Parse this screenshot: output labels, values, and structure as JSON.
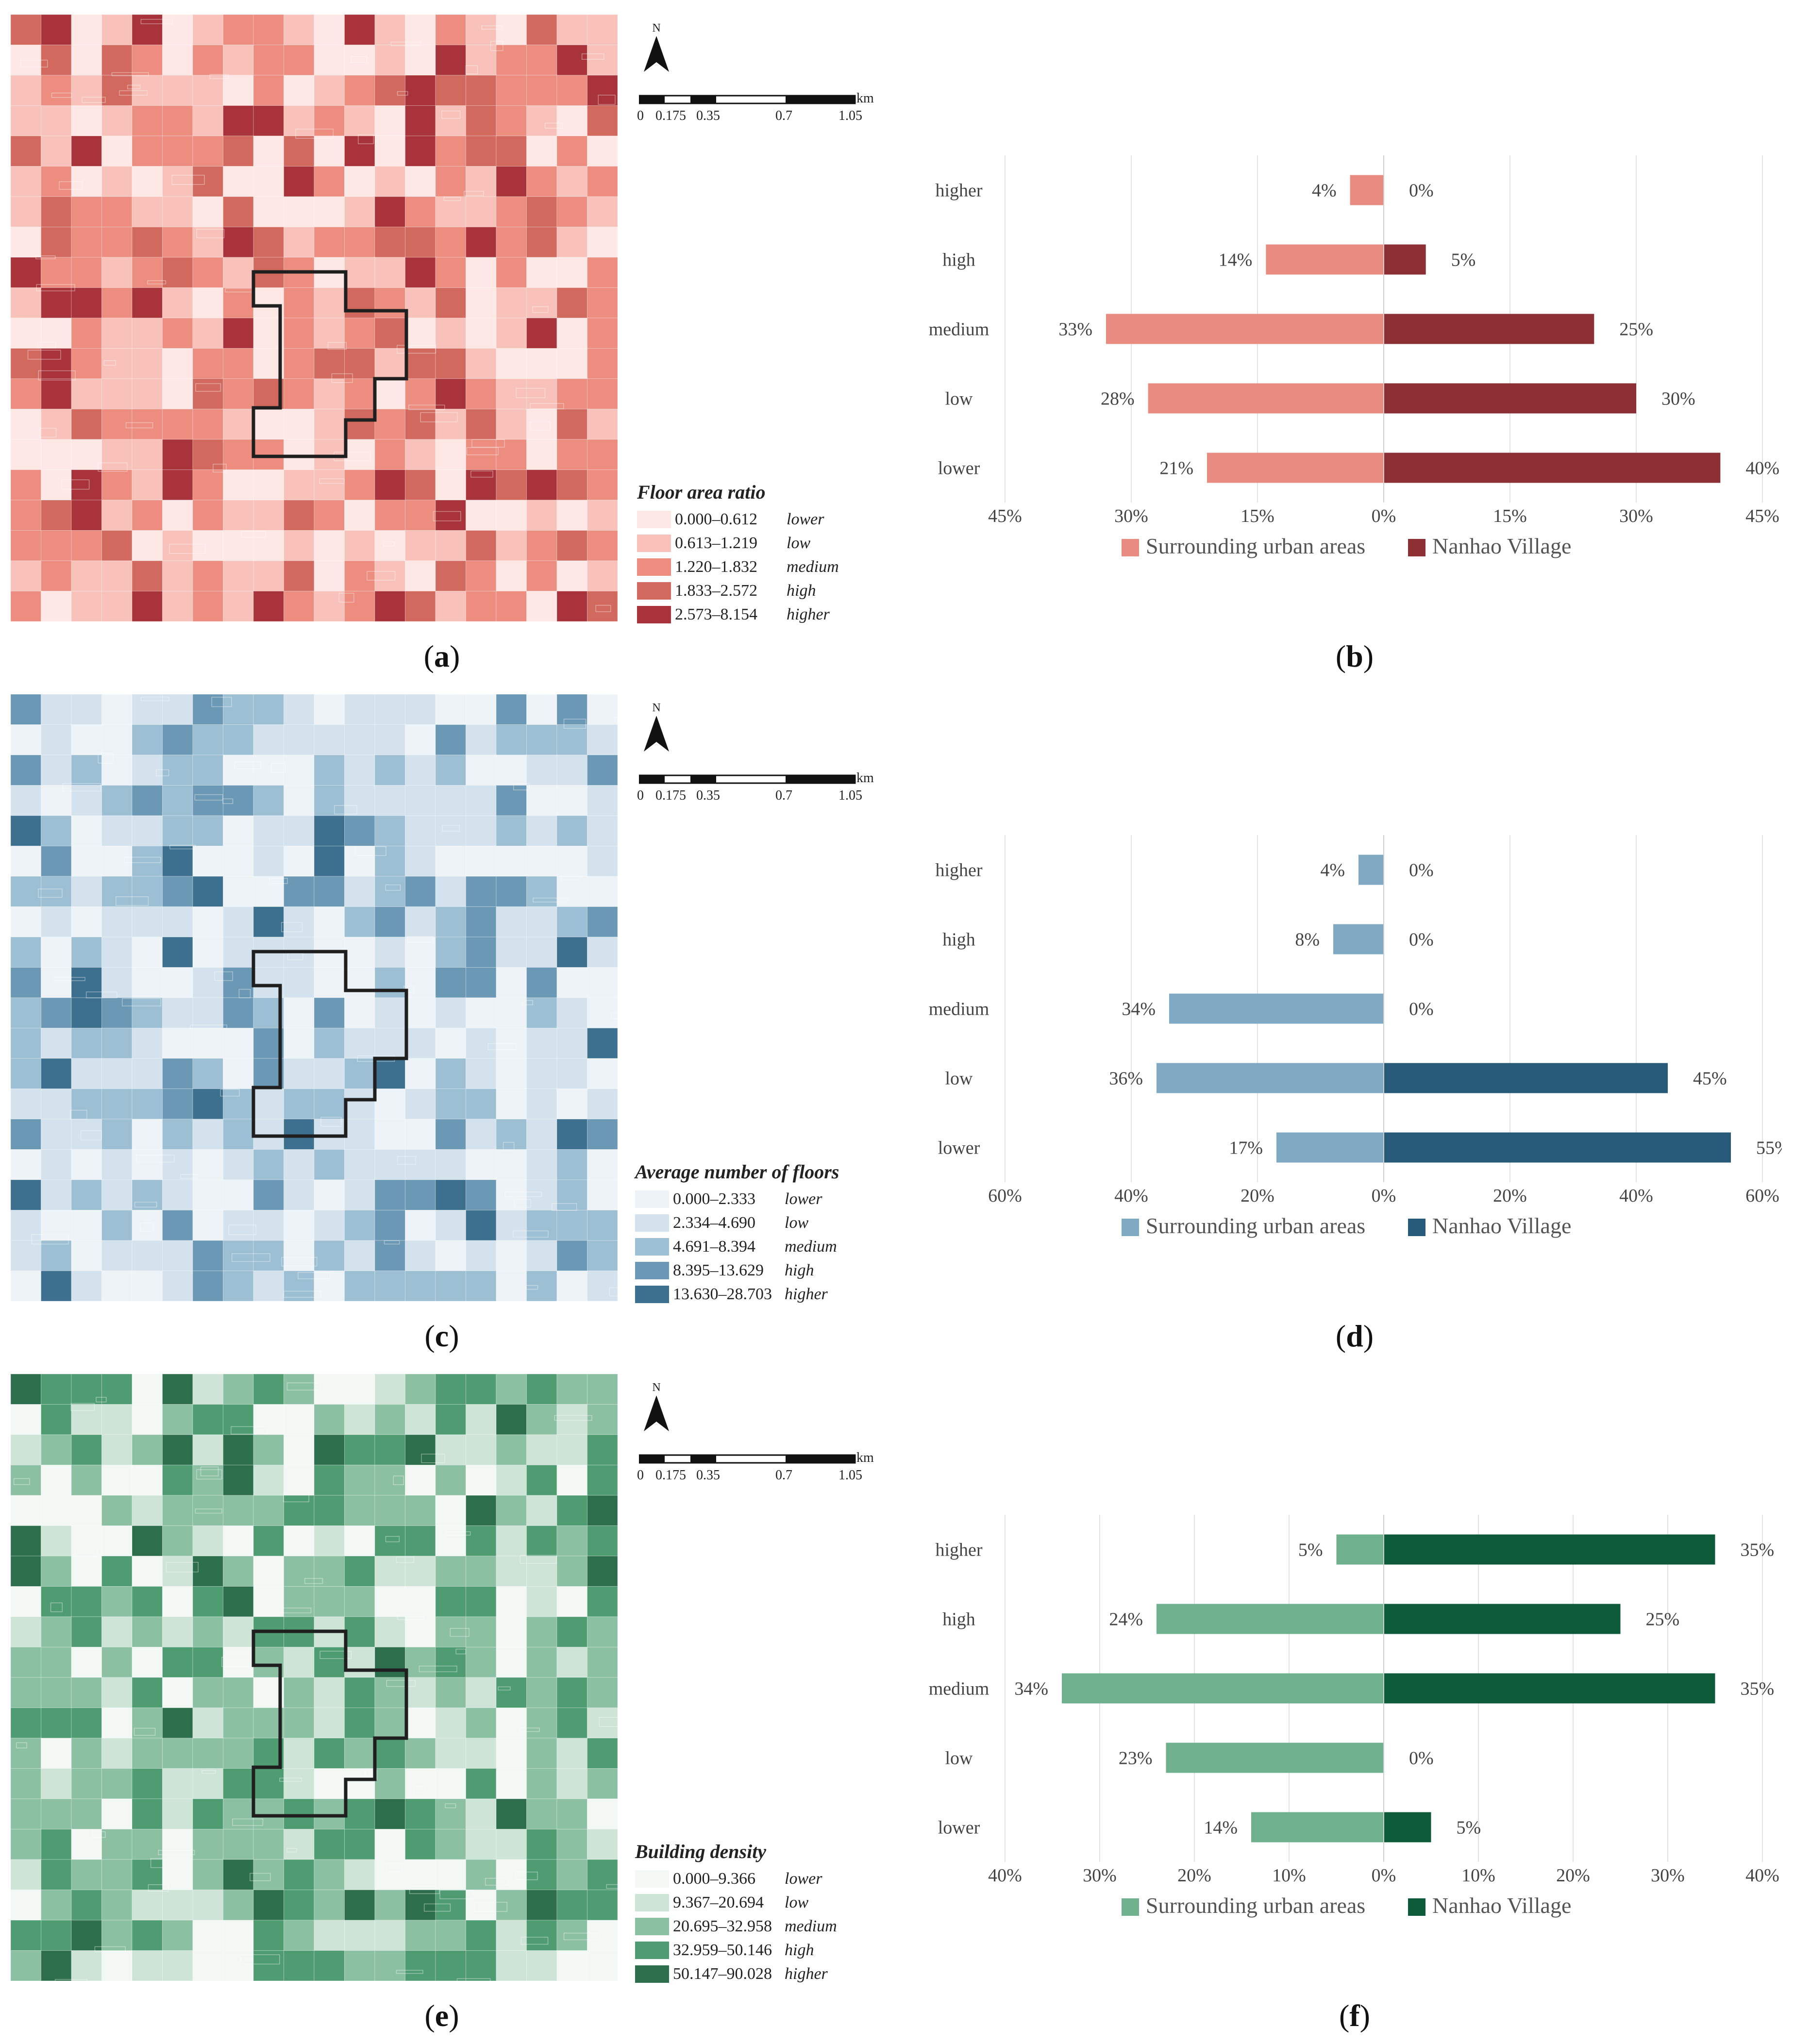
{
  "panel_labels": [
    "(",
    "a",
    ")",
    "(",
    "b",
    ")",
    "(",
    "c",
    ")",
    "(",
    "d",
    ")",
    "(",
    "e",
    ")",
    "(",
    "f",
    ")"
  ],
  "north_label": "N",
  "scale": {
    "ticks": [
      "0",
      "0.175",
      "0.35",
      "0.7",
      "1.05"
    ],
    "unit": "km"
  },
  "maps": [
    {
      "id": "far",
      "legend_title": "Floor area ratio",
      "colors": [
        "#fde8e6",
        "#f8c2bb",
        "#ec8d80",
        "#d1695f",
        "#a8333a"
      ],
      "classes": [
        {
          "range": "0.000–0.612",
          "label": "lower"
        },
        {
          "range": "0.613–1.219",
          "label": "low"
        },
        {
          "range": "1.220–1.832",
          "label": "medium"
        },
        {
          "range": "1.833–2.572",
          "label": "high"
        },
        {
          "range": "2.573–8.154",
          "label": "higher"
        }
      ]
    },
    {
      "id": "floors",
      "legend_title": "Average number of floors",
      "colors": [
        "#edf3f6",
        "#d3e2ec",
        "#9dbfd3",
        "#6b98b4",
        "#3d6f8f"
      ],
      "classes": [
        {
          "range": "0.000–2.333",
          "label": "lower"
        },
        {
          "range": "2.334–4.690",
          "label": "low"
        },
        {
          "range": "4.691–8.394",
          "label": "medium"
        },
        {
          "range": "8.395–13.629",
          "label": "high"
        },
        {
          "range": "13.630–28.703",
          "label": "higher"
        }
      ]
    },
    {
      "id": "density",
      "legend_title": "Building density",
      "colors": [
        "#f3f8f5",
        "#cde4d7",
        "#8cc0a3",
        "#4f9c73",
        "#2d6f4c"
      ],
      "classes": [
        {
          "range": "0.000–9.366",
          "label": "lower"
        },
        {
          "range": "9.367–20.694",
          "label": "low"
        },
        {
          "range": "20.695–32.958",
          "label": "medium"
        },
        {
          "range": "32.959–50.146",
          "label": "high"
        },
        {
          "range": "50.147–90.028",
          "label": "higher"
        }
      ]
    }
  ],
  "chart_data": [
    {
      "type": "bar",
      "orientation": "horizontal-diverging",
      "title": "",
      "categories": [
        "higher",
        "high",
        "medium",
        "low",
        "lower"
      ],
      "series": [
        {
          "name": "Surrounding urban areas",
          "color": "#e98b80",
          "values": [
            4,
            14,
            33,
            28,
            21
          ],
          "labels": [
            "4%",
            "14%",
            "33%",
            "28%",
            "21%"
          ]
        },
        {
          "name": "Nanhao Village",
          "color": "#8b2f35",
          "values": [
            0,
            5,
            25,
            30,
            40
          ],
          "labels": [
            "0%",
            "5%",
            "25%",
            "30%",
            "40%"
          ]
        }
      ],
      "xlim": [
        -45,
        45
      ],
      "xticks": [
        -45,
        -30,
        -15,
        0,
        15,
        30,
        45
      ],
      "xtick_labels": [
        "45%",
        "30%",
        "15%",
        "0%",
        "15%",
        "30%",
        "45%"
      ],
      "grid": true,
      "legend_position": "bottom"
    },
    {
      "type": "bar",
      "orientation": "horizontal-diverging",
      "title": "",
      "categories": [
        "higher",
        "high",
        "medium",
        "low",
        "lower"
      ],
      "series": [
        {
          "name": "Surrounding urban areas",
          "color": "#7fa9c3",
          "values": [
            4,
            8,
            34,
            36,
            17
          ],
          "labels": [
            "4%",
            "8%",
            "34%",
            "36%",
            "17%"
          ]
        },
        {
          "name": "Nanhao Village",
          "color": "#265a78",
          "values": [
            0,
            0,
            0,
            45,
            55
          ],
          "labels": [
            "0%",
            "0%",
            "0%",
            "45%",
            "55%"
          ]
        }
      ],
      "xlim": [
        -60,
        60
      ],
      "xticks": [
        -60,
        -40,
        -20,
        0,
        20,
        40,
        60
      ],
      "xtick_labels": [
        "60%",
        "40%",
        "20%",
        "0%",
        "20%",
        "40%",
        "60%"
      ],
      "grid": true,
      "legend_position": "bottom"
    },
    {
      "type": "bar",
      "orientation": "horizontal-diverging",
      "title": "",
      "categories": [
        "higher",
        "high",
        "medium",
        "low",
        "lower"
      ],
      "series": [
        {
          "name": "Surrounding urban areas",
          "color": "#6fb08f",
          "values": [
            5,
            24,
            34,
            23,
            14
          ],
          "labels": [
            "5%",
            "24%",
            "34%",
            "23%",
            "14%"
          ]
        },
        {
          "name": "Nanhao Village",
          "color": "#0d5a3a",
          "values": [
            35,
            25,
            35,
            0,
            5
          ],
          "labels": [
            "35%",
            "25%",
            "35%",
            "0%",
            "5%"
          ]
        }
      ],
      "xlim": [
        -40,
        40
      ],
      "xticks": [
        -40,
        -30,
        -20,
        -10,
        0,
        10,
        20,
        30,
        40
      ],
      "xtick_labels": [
        "40%",
        "30%",
        "20%",
        "10%",
        "0%",
        "10%",
        "20%",
        "30%",
        "40%"
      ],
      "grid": true,
      "legend_position": "bottom"
    }
  ]
}
